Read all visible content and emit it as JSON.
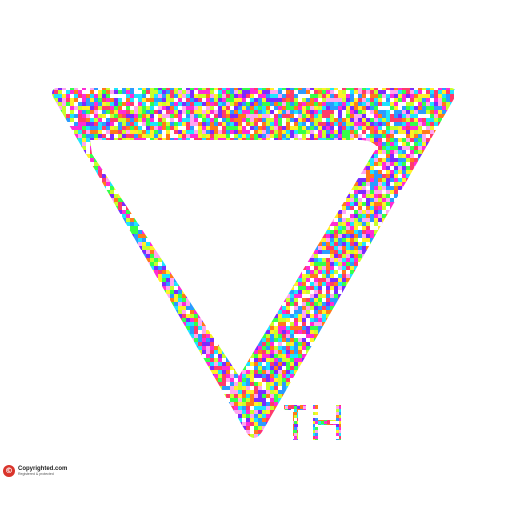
{
  "logo": {
    "glyph_text": "TH",
    "palette": [
      "#ff2bd6",
      "#1ee4ff",
      "#35ff4a",
      "#fff02a",
      "#ff7a1a",
      "#7a2bff",
      "#ff3b6b",
      "#2b9bff",
      "#c8ff2b",
      "#ffa6f0"
    ],
    "background_color": "#ffffff"
  },
  "watermark": {
    "title": "Copyrighted.com",
    "subtitle": "Registered & protected",
    "icon": "copyright-icon",
    "accent_color": "#d9342b"
  }
}
